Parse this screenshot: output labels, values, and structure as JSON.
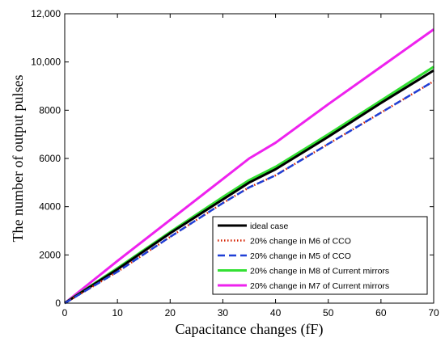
{
  "chart_data": {
    "type": "line",
    "xlabel": "Capacitance changes (fF)",
    "ylabel": "The number of output pulses",
    "xlim": [
      0,
      70
    ],
    "ylim": [
      0,
      12000
    ],
    "x_ticks": [
      "0",
      "10",
      "20",
      "30",
      "40",
      "50",
      "60",
      "70"
    ],
    "y_ticks": [
      "0",
      "2000",
      "4000",
      "6000",
      "8000",
      "10,000",
      "12,000"
    ],
    "grid": false,
    "legend_position": "bottom-right",
    "series": [
      {
        "name": "ideal case",
        "color": "#000000",
        "style": "solid",
        "points": [
          [
            0,
            0
          ],
          [
            10,
            1400
          ],
          [
            20,
            2900
          ],
          [
            30,
            4300
          ],
          [
            35,
            5000
          ],
          [
            40,
            5550
          ],
          [
            50,
            6900
          ],
          [
            60,
            8300
          ],
          [
            70,
            9650
          ]
        ]
      },
      {
        "name": "20% change in M6 of CCO",
        "color": "#d62000",
        "style": "dotted",
        "points": [
          [
            0,
            0
          ],
          [
            10,
            1300
          ],
          [
            20,
            2750
          ],
          [
            30,
            4150
          ],
          [
            35,
            4800
          ],
          [
            40,
            5300
          ],
          [
            50,
            6600
          ],
          [
            60,
            7900
          ],
          [
            70,
            9200
          ]
        ]
      },
      {
        "name": "20% change in M5 of CCO",
        "color": "#1f3fd6",
        "style": "dashed",
        "points": [
          [
            0,
            0
          ],
          [
            10,
            1300
          ],
          [
            20,
            2750
          ],
          [
            30,
            4150
          ],
          [
            35,
            4800
          ],
          [
            40,
            5300
          ],
          [
            50,
            6600
          ],
          [
            60,
            7900
          ],
          [
            70,
            9200
          ]
        ]
      },
      {
        "name": "20% change in M8 of Current mirrors",
        "color": "#33e033",
        "style": "solid",
        "points": [
          [
            0,
            0
          ],
          [
            10,
            1450
          ],
          [
            20,
            2950
          ],
          [
            30,
            4400
          ],
          [
            35,
            5100
          ],
          [
            40,
            5650
          ],
          [
            50,
            7000
          ],
          [
            60,
            8400
          ],
          [
            70,
            9800
          ]
        ]
      },
      {
        "name": "20% change in M7 of Current mirrors",
        "color": "#ee22ee",
        "style": "solid",
        "points": [
          [
            0,
            0
          ],
          [
            10,
            1750
          ],
          [
            20,
            3450
          ],
          [
            30,
            5150
          ],
          [
            35,
            6000
          ],
          [
            40,
            6650
          ],
          [
            50,
            8250
          ],
          [
            60,
            9800
          ],
          [
            70,
            11350
          ]
        ]
      }
    ]
  }
}
